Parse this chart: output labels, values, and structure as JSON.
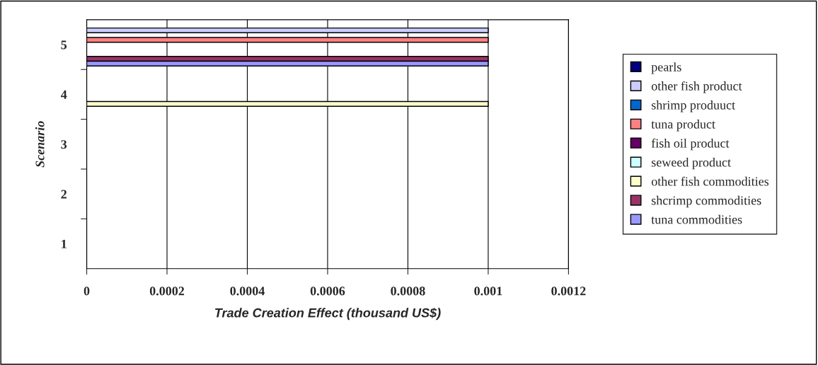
{
  "chart_data": {
    "type": "bar",
    "orientation": "horizontal",
    "xlabel": "Trade Creation Effect (thousand US$)",
    "ylabel": "Scenario",
    "categories": [
      "5",
      "4",
      "3",
      "2",
      "1"
    ],
    "series": [
      {
        "name": "pearls",
        "color": "#000080",
        "values": [
          null,
          null,
          null,
          null,
          null
        ]
      },
      {
        "name": "other fish product",
        "color": "#ccccff",
        "values": [
          0.001,
          null,
          null,
          null,
          null
        ]
      },
      {
        "name": "shrimp produuct",
        "color": "#0066cc",
        "values": [
          null,
          null,
          null,
          null,
          null
        ]
      },
      {
        "name": "tuna product",
        "color": "#ff8080",
        "values": [
          0.001,
          null,
          null,
          null,
          null
        ]
      },
      {
        "name": "fish oil product",
        "color": "#660066",
        "values": [
          null,
          null,
          null,
          null,
          null
        ]
      },
      {
        "name": "seweed product",
        "color": "#ccffff",
        "values": [
          null,
          null,
          null,
          null,
          null
        ]
      },
      {
        "name": "other fish commodities",
        "color": "#ffffcc",
        "values": [
          null,
          0.001,
          null,
          null,
          null
        ]
      },
      {
        "name": "shcrimp commodities",
        "color": "#993366",
        "values": [
          0.001,
          null,
          null,
          null,
          null
        ]
      },
      {
        "name": "tuna commodities",
        "color": "#9999ff",
        "values": [
          0.001,
          null,
          null,
          null,
          null
        ]
      }
    ],
    "xlim": [
      0,
      0.0012
    ],
    "xticks": [
      0,
      0.0002,
      0.0004,
      0.0006,
      0.0008,
      0.001,
      0.0012
    ],
    "grid": "x",
    "legend": "right"
  }
}
